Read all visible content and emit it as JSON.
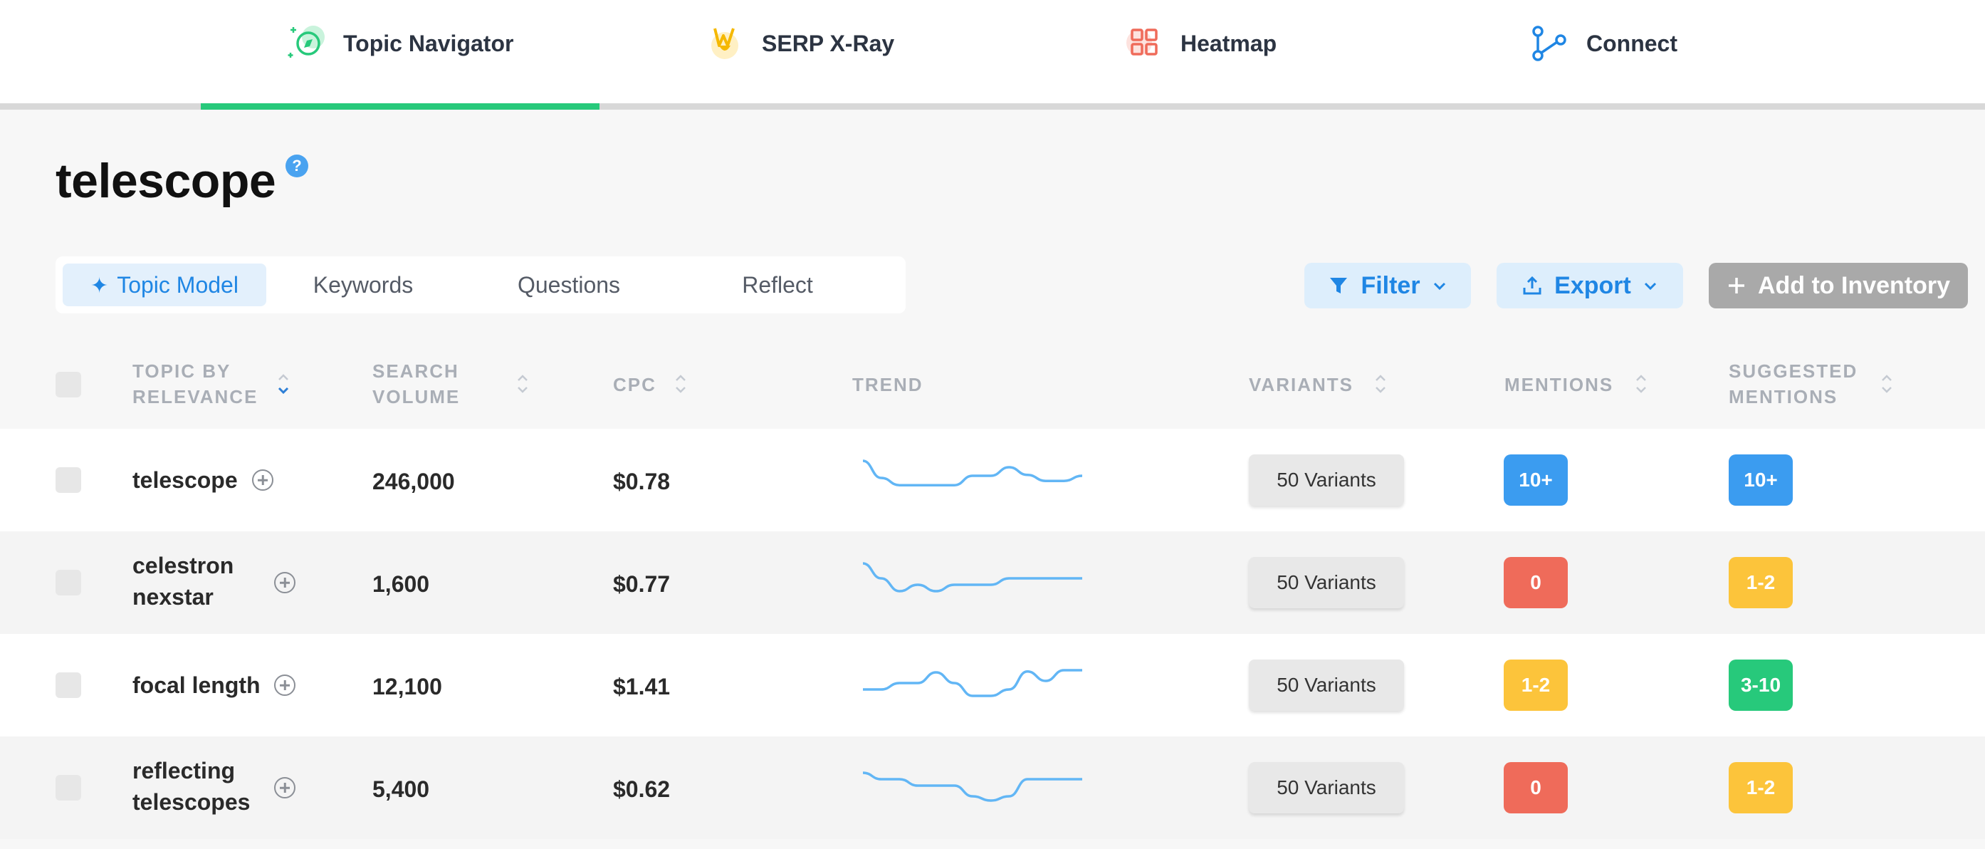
{
  "nav": {
    "tabs": [
      {
        "label": "Topic Navigator",
        "icon": "compass-icon",
        "active": true
      },
      {
        "label": "SERP X-Ray",
        "icon": "xray-icon",
        "active": false
      },
      {
        "label": "Heatmap",
        "icon": "grid-icon",
        "active": false
      },
      {
        "label": "Connect",
        "icon": "connect-icon",
        "active": false
      }
    ]
  },
  "page": {
    "title": "telescope",
    "help": "?"
  },
  "subtabs": [
    {
      "label": "Topic Model",
      "active": true,
      "icon": "sparkle-icon"
    },
    {
      "label": "Keywords",
      "active": false
    },
    {
      "label": "Questions",
      "active": false
    },
    {
      "label": "Reflect",
      "active": false
    }
  ],
  "actions": {
    "filter": "Filter",
    "export": "Export",
    "add_inventory": "Add to Inventory"
  },
  "table": {
    "headers": {
      "topic_line1": "TOPIC BY",
      "topic_line2": "RELEVANCE",
      "volume_line1": "SEARCH",
      "volume_line2": "VOLUME",
      "cpc": "CPC",
      "trend": "TREND",
      "variants": "VARIANTS",
      "mentions": "MENTIONS",
      "suggested_line1": "SUGGESTED",
      "suggested_line2": "MENTIONS"
    },
    "rows": [
      {
        "topic_line1": "telescope",
        "topic_line2": "",
        "volume": "246,000",
        "cpc": "$0.78",
        "variants": "50 Variants",
        "mentions": "10+",
        "mentions_color": "#3b9cf0",
        "suggested": "10+",
        "suggested_color": "#3b9cf0",
        "trend": [
          0.95,
          0.55,
          0.38,
          0.38,
          0.38,
          0.38,
          0.6,
          0.6,
          0.8,
          0.62,
          0.48,
          0.48,
          0.6
        ]
      },
      {
        "topic_line1": "celestron",
        "topic_line2": "nexstar",
        "volume": "1,600",
        "cpc": "$0.77",
        "variants": "50 Variants",
        "mentions": "0",
        "mentions_color": "#ef6b5a",
        "suggested": "1-2",
        "suggested_color": "#fcc43b",
        "trend": [
          0.95,
          0.6,
          0.3,
          0.45,
          0.3,
          0.45,
          0.45,
          0.45,
          0.6,
          0.6,
          0.6,
          0.6,
          0.6
        ]
      },
      {
        "topic_line1": "focal length",
        "topic_line2": "",
        "volume": "12,100",
        "cpc": "$1.41",
        "variants": "50 Variants",
        "mentions": "1-2",
        "mentions_color": "#fcc43b",
        "suggested": "3-10",
        "suggested_color": "#27c97b",
        "trend": [
          0.4,
          0.4,
          0.55,
          0.55,
          0.8,
          0.55,
          0.25,
          0.25,
          0.4,
          0.82,
          0.6,
          0.85,
          0.85
        ]
      },
      {
        "topic_line1": "reflecting",
        "topic_line2": "telescopes",
        "volume": "5,400",
        "cpc": "$0.62",
        "variants": "50 Variants",
        "mentions": "0",
        "mentions_color": "#ef6b5a",
        "suggested": "1-2",
        "suggested_color": "#fcc43b",
        "trend": [
          0.85,
          0.7,
          0.7,
          0.55,
          0.55,
          0.55,
          0.3,
          0.2,
          0.3,
          0.7,
          0.7,
          0.7,
          0.7
        ]
      }
    ]
  }
}
